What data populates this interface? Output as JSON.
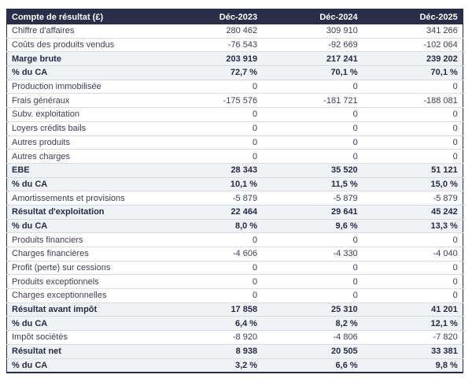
{
  "colors": {
    "header_bg": "#2a2e48",
    "band_bg": "#eff3f6",
    "border": "#262b45",
    "separator": "#d9dde1",
    "text": "#3a3f55",
    "text_bold": "#262b47",
    "header_text": "#ffffff"
  },
  "chart_data": {
    "type": "table",
    "title": "Compte de résultat (£)",
    "columns": [
      "Déc-2023",
      "Déc-2024",
      "Déc-2025"
    ],
    "rows": [
      {
        "label": "Chiffre d'affaires",
        "values": [
          "280 462",
          "309 910",
          "341 266"
        ],
        "emphasis": false
      },
      {
        "label": "Coûts des produits vendus",
        "values": [
          "-76 543",
          "-92 669",
          "-102 064"
        ],
        "emphasis": false
      },
      {
        "label": "Marge brute",
        "values": [
          "203 919",
          "217 241",
          "239 202"
        ],
        "emphasis": true
      },
      {
        "label": "% du CA",
        "values": [
          "72,7 %",
          "70,1 %",
          "70,1 %"
        ],
        "emphasis": true
      },
      {
        "label": "Production immobilisée",
        "values": [
          "0",
          "0",
          "0"
        ],
        "emphasis": false
      },
      {
        "label": "Frais généraux",
        "values": [
          "-175 576",
          "-181 721",
          "-188 081"
        ],
        "emphasis": false
      },
      {
        "label": "Subv. exploitation",
        "values": [
          "0",
          "0",
          "0"
        ],
        "emphasis": false
      },
      {
        "label": "Loyers crédits bails",
        "values": [
          "0",
          "0",
          "0"
        ],
        "emphasis": false
      },
      {
        "label": "Autres produits",
        "values": [
          "0",
          "0",
          "0"
        ],
        "emphasis": false
      },
      {
        "label": "Autres charges",
        "values": [
          "0",
          "0",
          "0"
        ],
        "emphasis": false
      },
      {
        "label": "EBE",
        "values": [
          "28 343",
          "35 520",
          "51 121"
        ],
        "emphasis": true
      },
      {
        "label": "% du CA",
        "values": [
          "10,1 %",
          "11,5 %",
          "15,0 %"
        ],
        "emphasis": true
      },
      {
        "label": "Amortissements et provisions",
        "values": [
          "-5 879",
          "-5 879",
          "-5 879"
        ],
        "emphasis": false
      },
      {
        "label": "Résultat d'exploitation",
        "values": [
          "22 464",
          "29 641",
          "45 242"
        ],
        "emphasis": true
      },
      {
        "label": "% du CA",
        "values": [
          "8,0 %",
          "9,6 %",
          "13,3 %"
        ],
        "emphasis": true
      },
      {
        "label": "Produits financiers",
        "values": [
          "0",
          "0",
          "0"
        ],
        "emphasis": false
      },
      {
        "label": "Charges financières",
        "values": [
          "-4 606",
          "-4 330",
          "-4 040"
        ],
        "emphasis": false
      },
      {
        "label": "Profit (perte) sur cessions",
        "values": [
          "0",
          "0",
          "0"
        ],
        "emphasis": false
      },
      {
        "label": "Produits exceptionnels",
        "values": [
          "0",
          "0",
          "0"
        ],
        "emphasis": false
      },
      {
        "label": "Charges exceptionnelles",
        "values": [
          "0",
          "0",
          "0"
        ],
        "emphasis": false
      },
      {
        "label": "Résultat avant impôt",
        "values": [
          "17 858",
          "25 310",
          "41 201"
        ],
        "emphasis": true
      },
      {
        "label": "% du CA",
        "values": [
          "6,4 %",
          "8,2 %",
          "12,1 %"
        ],
        "emphasis": true
      },
      {
        "label": "Impôt sociétés",
        "values": [
          "-8 920",
          "-4 806",
          "-7 820"
        ],
        "emphasis": false
      },
      {
        "label": "Résultat net",
        "values": [
          "8 938",
          "20 505",
          "33 381"
        ],
        "emphasis": true
      },
      {
        "label": "% du CA",
        "values": [
          "3,2 %",
          "6,6 %",
          "9,8 %"
        ],
        "emphasis": true
      }
    ]
  }
}
